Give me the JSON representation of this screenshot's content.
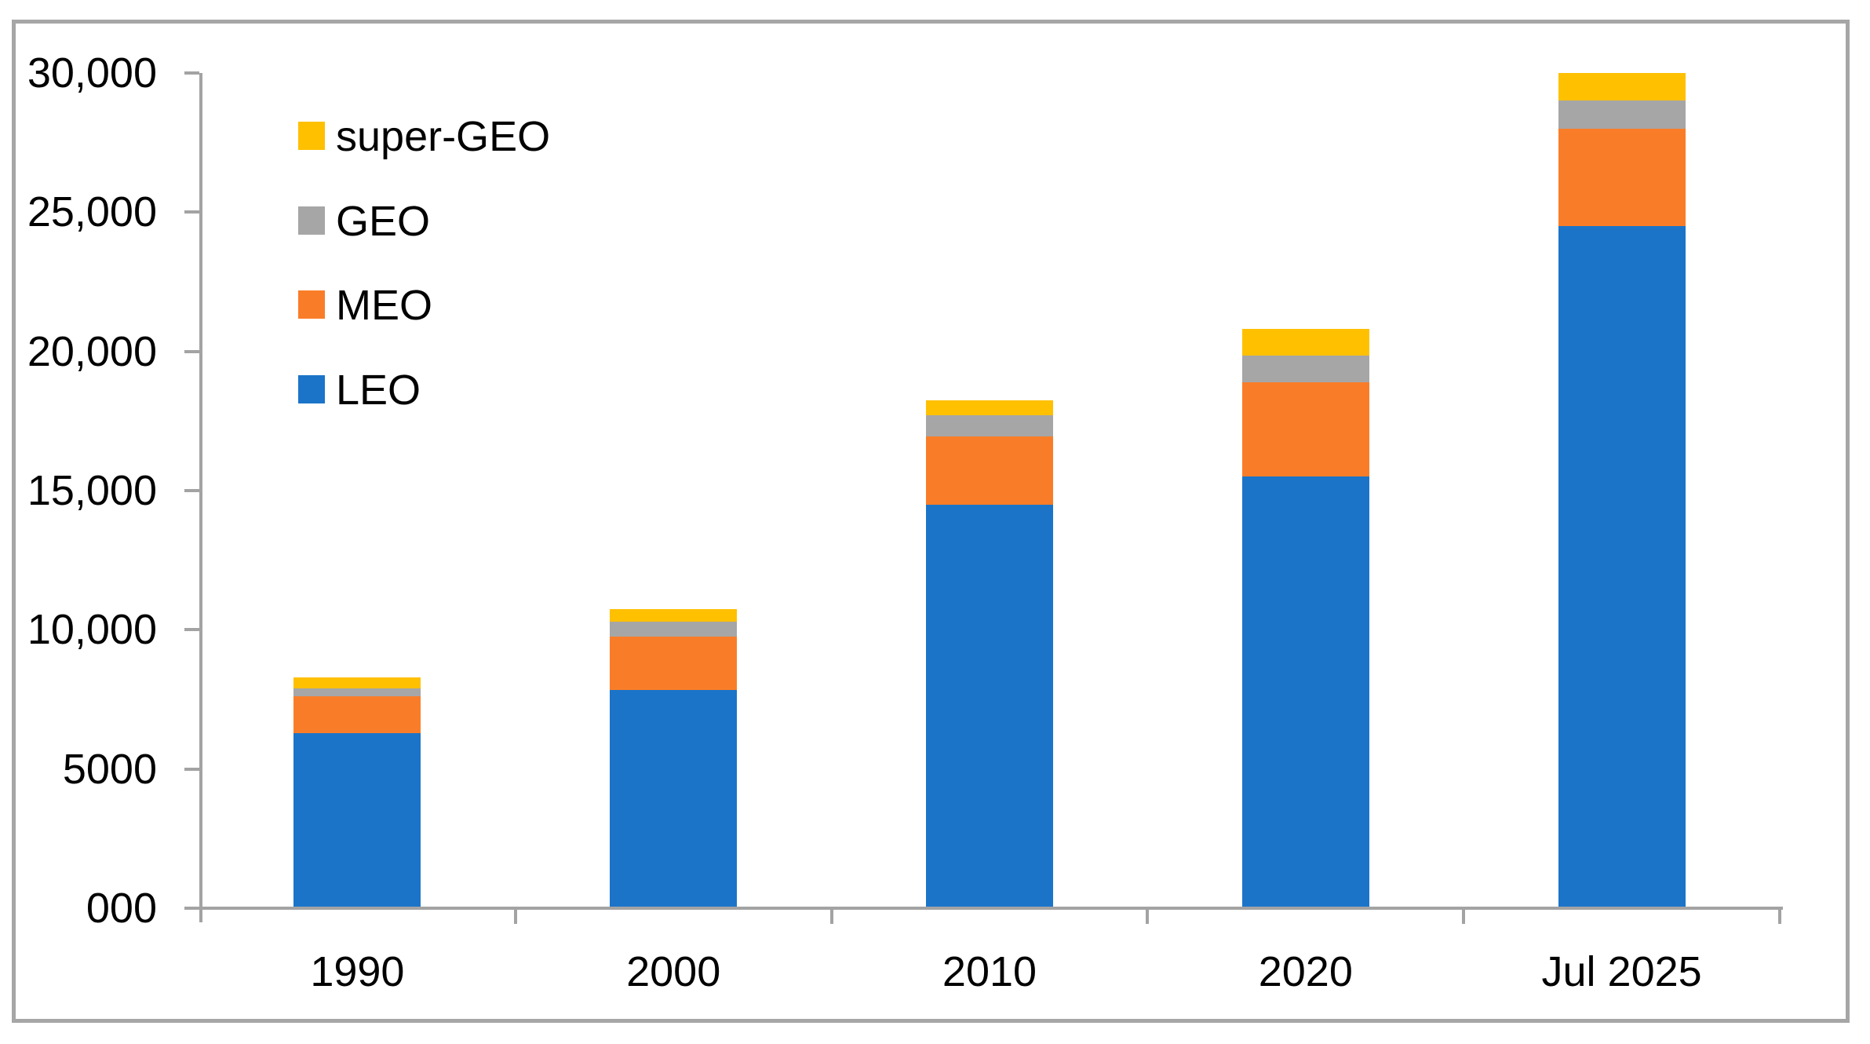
{
  "chart_data": {
    "type": "bar",
    "stacked": true,
    "title": "",
    "xlabel": "",
    "ylabel": "",
    "categories": [
      "1990",
      "2000",
      "2010",
      "2020",
      "Jul 2025"
    ],
    "series": [
      {
        "name": "LEO",
        "color": "#1b74c8",
        "values": [
          6300,
          7850,
          14500,
          15500,
          24500
        ]
      },
      {
        "name": "MEO",
        "color": "#f97d28",
        "values": [
          1300,
          1900,
          2450,
          3400,
          3500
        ]
      },
      {
        "name": "GEO",
        "color": "#a6a6a6",
        "values": [
          300,
          550,
          750,
          950,
          1000
        ]
      },
      {
        "name": "super-GEO",
        "color": "#ffc000",
        "values": [
          400,
          450,
          550,
          950,
          1000
        ]
      }
    ],
    "totals": [
      8300,
      10750,
      18250,
      20800,
      30000
    ],
    "ylim": [
      0,
      30000
    ],
    "ytick_step": 5000,
    "ytick_labels": [
      "000",
      "5000",
      "10,000",
      "15,000",
      "20,000",
      "25,000",
      "30,000"
    ],
    "legend_order": [
      "super-GEO",
      "GEO",
      "MEO",
      "LEO"
    ],
    "legend_position": "upper-left-inside",
    "grid": false,
    "axis_color": "#a3a3a3",
    "frame_color": "#a6a6a6",
    "text_color": "#000000",
    "background_color": "#ffffff"
  }
}
